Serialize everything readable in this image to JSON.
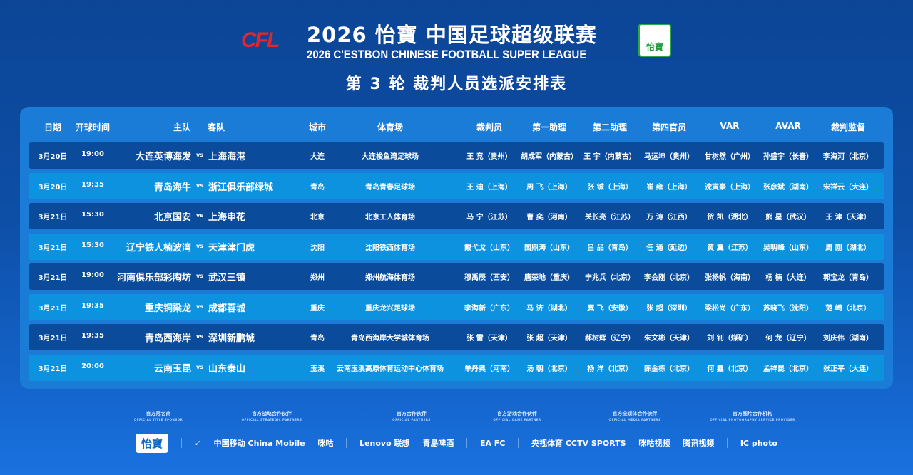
{
  "header": {
    "logo_text": "CFL",
    "title_cn": "2026 怡寶 中国足球超级联赛",
    "title_en": "2026 C'ESTBON CHINESE FOOTBALL SUPER LEAGUE",
    "badge_text": "怡寶",
    "round_title": "第 3 轮 裁判人员选派安排表"
  },
  "colors": {
    "background": "#0c4596",
    "panel": "#1a7cd6",
    "row_dark": "#0a4c9b",
    "row_light": "#0d92e0",
    "cfl_red": "#e3262b"
  },
  "table": {
    "columns": [
      "日期",
      "开球时间",
      "主队",
      "客队",
      "城市",
      "体育场",
      "裁判员",
      "第一助理",
      "第二助理",
      "第四官员",
      "VAR",
      "AVAR",
      "裁判监督"
    ],
    "vs": "vs",
    "rows": [
      {
        "date": "3月20日",
        "time": "19:00",
        "home": "大连英博海发",
        "away": "上海海港",
        "city": "大连",
        "stadium": "大连梭鱼湾足球场",
        "ref": "王  竞（贵州）",
        "ar1": "胡成军（内蒙古）",
        "ar2": "王  宇（内蒙古）",
        "fourth": "马运坤（贵州）",
        "var": "甘树然（广州）",
        "avar": "孙盛宇（长春）",
        "supervisor": "李海河（北京）"
      },
      {
        "date": "3月20日",
        "time": "19:35",
        "home": "青岛海牛",
        "away": "浙江俱乐部绿城",
        "city": "青岛",
        "stadium": "青岛青春足球场",
        "ref": "王  迪（上海）",
        "ar1": "周  飞（上海）",
        "ar2": "张  铖（上海）",
        "fourth": "崔  雍（上海）",
        "var": "沈寅豪（上海）",
        "avar": "张彦斌（湖南）",
        "supervisor": "宋祥云（大连）"
      },
      {
        "date": "3月21日",
        "time": "15:30",
        "home": "北京国安",
        "away": "上海申花",
        "city": "北京",
        "stadium": "北京工人体育场",
        "ref": "马  宁（江苏）",
        "ar1": "曹  奕（河南）",
        "ar2": "关长亮（江苏）",
        "fourth": "万  涛（江西）",
        "var": "贺  凯（湖北）",
        "avar": "熊  星（武汉）",
        "supervisor": "王  津（天津）"
      },
      {
        "date": "3月21日",
        "time": "15:30",
        "home": "辽宁铁人楠波湾",
        "away": "天津津门虎",
        "city": "沈阳",
        "stadium": "沈阳铁西体育场",
        "ref": "戴弋戈（山东）",
        "ar1": "国鼎涛（山东）",
        "ar2": "吕  品（青岛）",
        "fourth": "任  通（延边）",
        "var": "黄  翼（江苏）",
        "avar": "吴明峰（山东）",
        "supervisor": "周  刚（湖北）"
      },
      {
        "date": "3月21日",
        "time": "19:00",
        "home": "河南俱乐部彩陶坊",
        "away": "武汉三镇",
        "city": "郑州",
        "stadium": "郑州航海体育场",
        "ref": "穆禹辰（西安）",
        "ar1": "唐荣地（重庆）",
        "ar2": "宁兆兵（北京）",
        "fourth": "李会刚（北京）",
        "var": "张杨帆（海南）",
        "avar": "杨  楠（大连）",
        "supervisor": "郭宝龙（青岛）"
      },
      {
        "date": "3月21日",
        "time": "19:35",
        "home": "重庆铜梁龙",
        "away": "成都蓉城",
        "city": "重庆",
        "stadium": "重庆龙兴足球场",
        "ref": "李海新（广东）",
        "ar1": "马  济（湖北）",
        "ar2": "麋  飞（安徽）",
        "fourth": "张  超（深圳）",
        "var": "梁松尚（广东）",
        "avar": "苏晓飞（沈阳）",
        "supervisor": "范  崎（北京）"
      },
      {
        "date": "3月21日",
        "time": "19:35",
        "home": "青岛西海岸",
        "away": "深圳新鹏城",
        "city": "青岛",
        "stadium": "青岛西海岸大学城体育场",
        "ref": "张  雷（天津）",
        "ar1": "张  超（天津）",
        "ar2": "郝树辉（辽宁）",
        "fourth": "朱文彬（天津）",
        "var": "刘  钊（煤矿）",
        "avar": "何  龙（辽宁）",
        "supervisor": "刘庆伟（湖南）"
      },
      {
        "date": "3月21日",
        "time": "20:00",
        "home": "云南玉昆",
        "away": "山东泰山",
        "city": "玉溪",
        "stadium": "云南玉溪高原体育运动中心体育场",
        "ref": "单丹奥（河南）",
        "ar1": "汤  朝（北京）",
        "ar2": "杨  洋（北京）",
        "fourth": "陈金栋（北京）",
        "var": "何  鑫（北京）",
        "avar": "孟祥昆（北京）",
        "supervisor": "张正平（大连）"
      }
    ]
  },
  "sponsors": {
    "categories": [
      {
        "cn": "官方冠名商",
        "en": "OFFICIAL TITLE SPONSOR"
      },
      {
        "cn": "官方战略合作伙伴",
        "en": "OFFICIAL STRATEGIC PARTNERS"
      },
      {
        "cn": "官方合作伙伴",
        "en": "OFFICIAL PARTNERS"
      },
      {
        "cn": "官方游戏合作伙伴",
        "en": "OFFICIAL GAME PARTNER"
      },
      {
        "cn": "官方全媒体合作伙伴",
        "en": "OFFICIAL MEDIA PARTNERS"
      },
      {
        "cn": "官方图片合作机构",
        "en": "OFFICIAL PHOTOGRAPHY SERVICE PROVIDER"
      }
    ],
    "logos": [
      "怡寶",
      "✓",
      "中国移动 China Mobile",
      "咪咕",
      "Lenovo 联想",
      "青島啤酒",
      "EA FC",
      "央视体育 CCTV SPORTS",
      "咪咕视频",
      "腾讯视频",
      "IC photo"
    ]
  }
}
